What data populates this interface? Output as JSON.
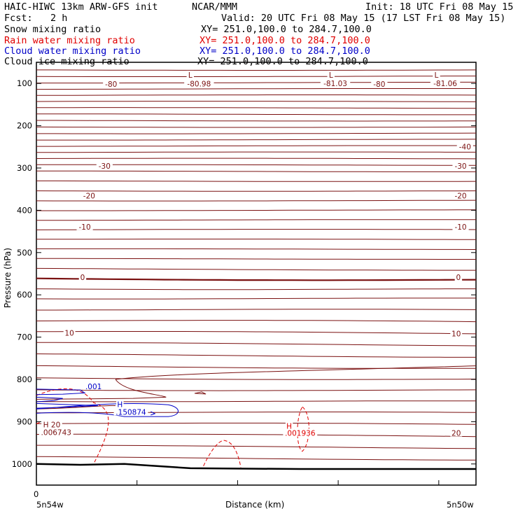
{
  "header": {
    "title": "HAIC-HIWC 13km ARW-GFS init",
    "org": "NCAR/MMM",
    "init": "Init: 18 UTC Fri 08 May 15",
    "fcst_label": "Fcst:",
    "fcst_value": "2 h",
    "valid": "Valid: 20 UTC Fri 08 May 15 (17 LST Fri 08 May 15)"
  },
  "fields": [
    {
      "name": "Snow mixing ratio",
      "xy": "XY= 251.0,100.0 to 284.7,100.0",
      "color": "#000000"
    },
    {
      "name": "Rain water mixing ratio",
      "xy": "XY= 251.0,100.0 to 284.7,100.0",
      "color": "#e00000"
    },
    {
      "name": "Cloud water mixing ratio",
      "xy": "XY= 251.0,100.0 to 284.7,100.0",
      "color": "#0000c8"
    },
    {
      "name": "Cloud ice mixing ratio",
      "xy": "XY= 251.0,100.0 to 284.7,100.0",
      "color": "#000000"
    }
  ],
  "chart_data": {
    "type": "line",
    "xlabel": "Distance (km)",
    "ylabel": "Pressure (hPa)",
    "x_tick_zero": "0",
    "x_left_label": "5n54w",
    "x_right_label": "5n50w",
    "y_ticks": [
      100,
      200,
      300,
      400,
      500,
      600,
      700,
      800,
      900,
      1000
    ],
    "ylim": [
      1050,
      50
    ],
    "temperature_color": "#7a1010",
    "contour_labels": [
      {
        "text": "-80",
        "x": 0.17,
        "p": 105
      },
      {
        "text": "-80.98",
        "x": 0.37,
        "p": 104
      },
      {
        "text": "-81.03",
        "x": 0.68,
        "p": 103
      },
      {
        "text": "-80",
        "x": 0.78,
        "p": 105
      },
      {
        "text": "-81.06",
        "x": 0.93,
        "p": 103
      },
      {
        "text": "L",
        "x": 0.35,
        "p": 83
      },
      {
        "text": "L",
        "x": 0.67,
        "p": 83
      },
      {
        "text": "L",
        "x": 0.91,
        "p": 83
      },
      {
        "text": "-40",
        "x": 0.975,
        "p": 253
      },
      {
        "text": "-30",
        "x": 0.155,
        "p": 298
      },
      {
        "text": "-30",
        "x": 0.965,
        "p": 298
      },
      {
        "text": "-20",
        "x": 0.12,
        "p": 369
      },
      {
        "text": "-20",
        "x": 0.965,
        "p": 369
      },
      {
        "text": "-10",
        "x": 0.11,
        "p": 442
      },
      {
        "text": "-10",
        "x": 0.965,
        "p": 442
      },
      {
        "text": "0",
        "x": 0.105,
        "p": 562
      },
      {
        "text": "0",
        "x": 0.96,
        "p": 562
      },
      {
        "text": "10",
        "x": 0.075,
        "p": 693
      },
      {
        "text": "10",
        "x": 0.955,
        "p": 695
      },
      {
        "text": "20",
        "x": 0.955,
        "p": 930
      },
      {
        "text": "H 20",
        "x": 0.035,
        "p": 910
      },
      {
        "text": ".006743",
        "x": 0.045,
        "p": 928
      }
    ],
    "rain_labels": [
      {
        "text": "H",
        "x": 0.575,
        "p": 913
      },
      {
        "text": ".001936",
        "x": 0.6,
        "p": 930
      }
    ],
    "cloud_labels": [
      {
        "text": ".001",
        "x": 0.13,
        "p": 820
      },
      {
        "text": "H",
        "x": 0.19,
        "p": 862
      },
      {
        "text": ".150874",
        "x": 0.215,
        "p": 880
      }
    ]
  }
}
